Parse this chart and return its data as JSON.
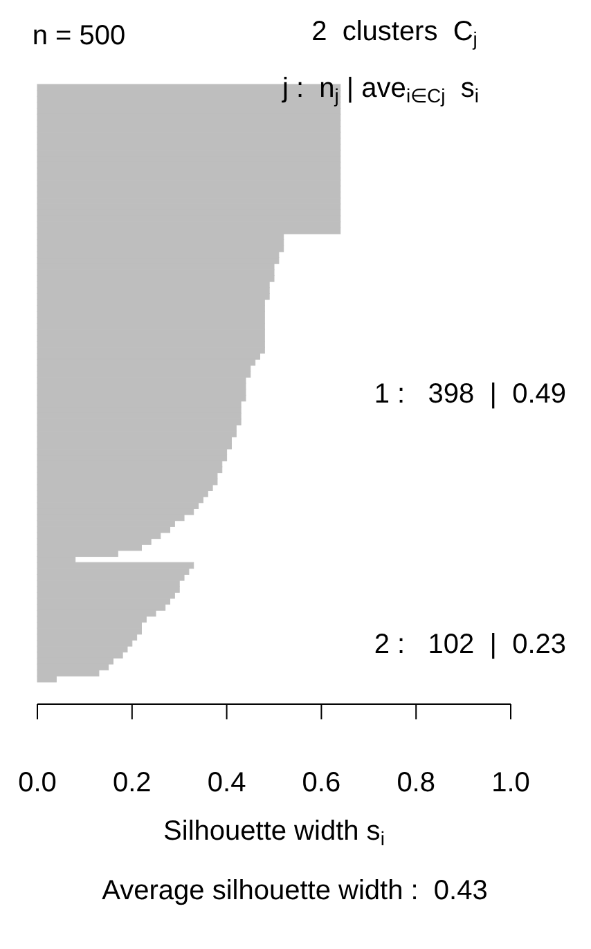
{
  "chart_data": {
    "type": "bar",
    "orientation": "horizontal",
    "title": "2  clusters  C$_{j}$",
    "subtitle": "j :  n$_{j}$ | ave$_{i∈Cj}$  s$_{i}$",
    "xlabel": "Silhouette width s$_{i}$",
    "annotations": [
      "n = 500",
      "1 :   398  |  0.49",
      "2 :   102  |  0.23",
      "Average silhouette width :  0.43"
    ],
    "categories": [
      null,
      null,
      null,
      null,
      null,
      null,
      null,
      null,
      null,
      null,
      null,
      null,
      null,
      null,
      null,
      null,
      null,
      null,
      null,
      null,
      null,
      null,
      null,
      null,
      null,
      null,
      null,
      null,
      null,
      null,
      null,
      null,
      null,
      null,
      null,
      null,
      null,
      null,
      null,
      null,
      null,
      null,
      null,
      null,
      null,
      null,
      null,
      null,
      null,
      null,
      null,
      null,
      null,
      null,
      null,
      null,
      null,
      null,
      null,
      null,
      null,
      null,
      null,
      null,
      null,
      null,
      null,
      null,
      null,
      null,
      null,
      null,
      null,
      null,
      null,
      null,
      null,
      null,
      null,
      null,
      null,
      null,
      null,
      null,
      null,
      null,
      null,
      null,
      null,
      null,
      null,
      null,
      null,
      null,
      null,
      null,
      null,
      null,
      null,
      null
    ],
    "values": [
      0.64,
      0.64,
      0.64,
      0.64,
      0.64,
      0.64,
      0.64,
      0.64,
      0.64,
      0.64,
      0.64,
      0.64,
      0.64,
      0.64,
      0.64,
      0.64,
      0.64,
      0.64,
      0.64,
      0.64,
      0.64,
      0.64,
      0.64,
      0.64,
      0.64,
      0.52,
      0.52,
      0.52,
      0.51,
      0.51,
      0.5,
      0.5,
      0.5,
      0.49,
      0.49,
      0.49,
      0.48,
      0.48,
      0.48,
      0.48,
      0.48,
      0.48,
      0.48,
      0.48,
      0.48,
      0.47,
      0.46,
      0.45,
      0.45,
      0.44,
      0.44,
      0.44,
      0.44,
      0.43,
      0.43,
      0.43,
      0.43,
      0.42,
      0.42,
      0.41,
      0.41,
      0.4,
      0.4,
      0.39,
      0.39,
      0.38,
      0.38,
      0.37,
      0.36,
      0.35,
      0.34,
      0.33,
      0.31,
      0.29,
      0.28,
      0.26,
      0.24,
      0.22,
      0.17,
      0.08,
      0.33,
      0.32,
      0.31,
      0.3,
      0.3,
      0.29,
      0.28,
      0.27,
      0.25,
      0.23,
      0.22,
      0.22,
      0.21,
      0.2,
      0.19,
      0.18,
      0.16,
      0.15,
      0.13,
      0.04
    ],
    "color": "#bebebe",
    "xlim": [
      0,
      1
    ],
    "xticks": [
      {
        "value": 0,
        "label": "0.0"
      },
      {
        "value": 0.2,
        "label": "0.2"
      },
      {
        "value": 0.4,
        "label": "0.4"
      },
      {
        "value": 0.6,
        "label": "0.6"
      },
      {
        "value": 0.8,
        "label": "0.8"
      },
      {
        "value": 1,
        "label": "1.0"
      }
    ],
    "grid": false
  }
}
